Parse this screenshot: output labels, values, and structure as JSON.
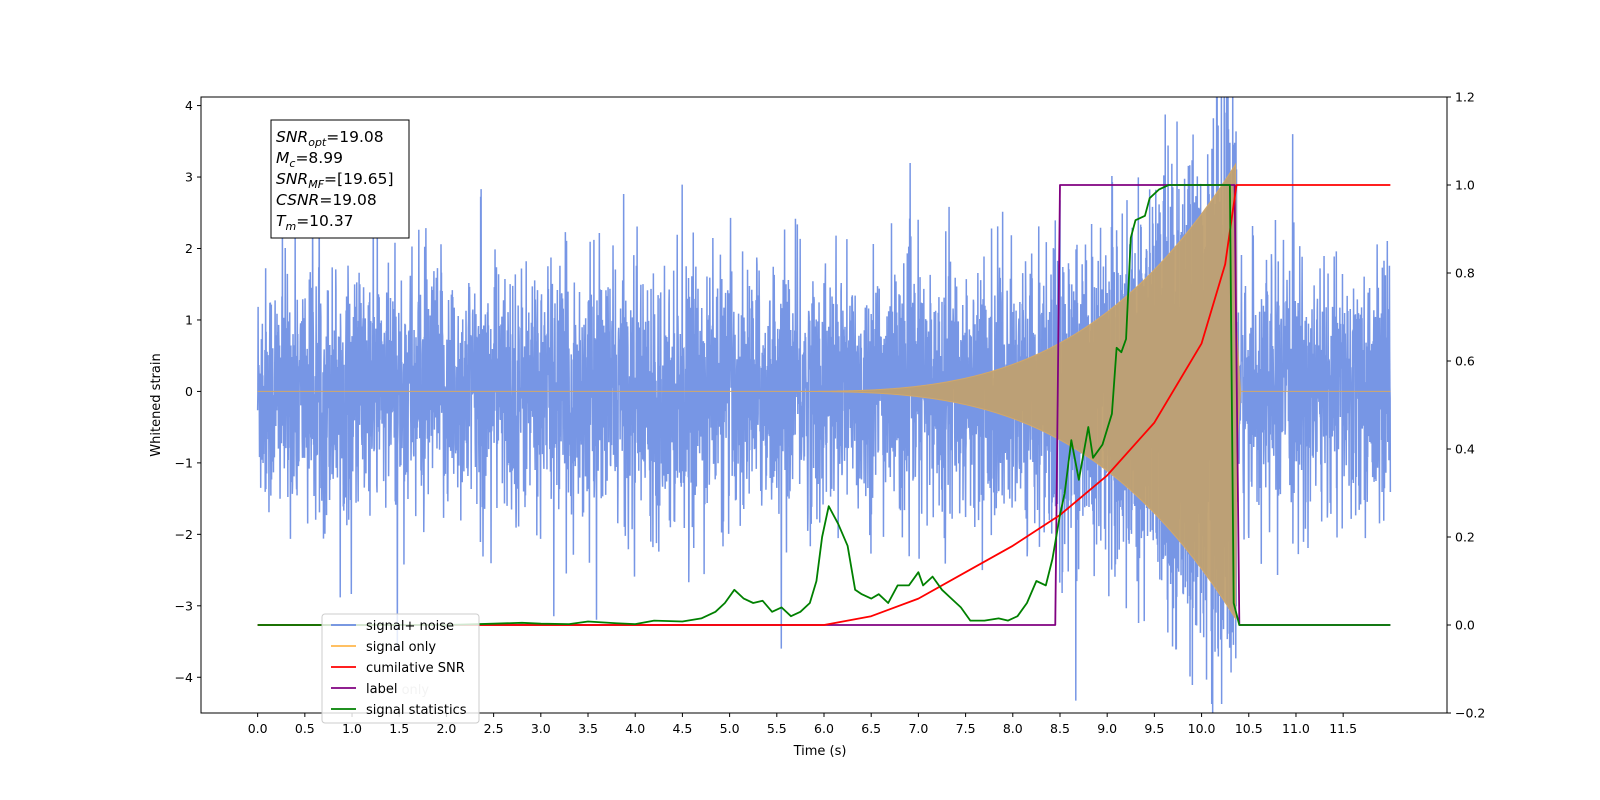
{
  "chart_data": {
    "type": "line",
    "xlabel": "Time (s)",
    "ylabel": "Whitened strain",
    "xlim": [
      -0.6,
      12.6
    ],
    "ylim_left": [
      -4.5,
      4.12
    ],
    "ylim_right": [
      -0.2,
      1.2
    ],
    "x_ticks": [
      "0.0",
      "0.5",
      "1.0",
      "1.5",
      "2.0",
      "2.5",
      "3.0",
      "3.5",
      "4.0",
      "4.5",
      "5.0",
      "5.5",
      "6.0",
      "6.5",
      "7.0",
      "7.5",
      "8.0",
      "8.5",
      "9.0",
      "9.5",
      "10.0",
      "10.5",
      "11.0",
      "11.5"
    ],
    "y_left_ticks": [
      "4",
      "3",
      "2",
      "1",
      "0",
      "−1",
      "−2",
      "−3",
      "−4"
    ],
    "y_right_ticks": [
      "1.2",
      "1.0",
      "0.8",
      "0.6",
      "0.4",
      "0.2",
      "0.0",
      "−0.2"
    ],
    "annotation": [
      {
        "sym": "SNR",
        "sub": "opt",
        "val": "=19.08"
      },
      {
        "sym": "M",
        "sub": "c",
        "val": "=8.99"
      },
      {
        "sym": "SNR",
        "sub": "MF",
        "val": "=[19.65]"
      },
      {
        "sym": "CSNR",
        "sub": "",
        "val": "=19.08"
      },
      {
        "sym": "T",
        "sub": "m",
        "val": "=10.37"
      }
    ],
    "legend_location": "lower-left",
    "legend_hidden_text": "label only",
    "series": [
      {
        "name": "signal+ noise",
        "color": "#6b8de3",
        "axis": "left",
        "description_noise_std": 0.85,
        "x_range": [
          0.0,
          12.0
        ]
      },
      {
        "name": "signal only",
        "color": "#ffb74d",
        "axis": "left",
        "chirp_start": 5.5,
        "merger_time": 10.37,
        "peak_amplitude": 3.2
      },
      {
        "name": "cumilative SNR",
        "color": "#ff0000",
        "axis": "right",
        "points": [
          [
            0.0,
            0.0
          ],
          [
            5.5,
            0.0
          ],
          [
            6.0,
            0.0
          ],
          [
            6.5,
            0.02
          ],
          [
            7.0,
            0.06
          ],
          [
            7.5,
            0.12
          ],
          [
            8.0,
            0.18
          ],
          [
            8.5,
            0.25
          ],
          [
            9.0,
            0.34
          ],
          [
            9.5,
            0.46
          ],
          [
            10.0,
            0.64
          ],
          [
            10.25,
            0.82
          ],
          [
            10.37,
            1.0
          ],
          [
            12.0,
            1.0
          ]
        ]
      },
      {
        "name": "label",
        "color": "#800080",
        "axis": "right",
        "points": [
          [
            0.0,
            0.0
          ],
          [
            8.45,
            0.0
          ],
          [
            8.5,
            1.0
          ],
          [
            10.35,
            1.0
          ],
          [
            10.4,
            0.0
          ],
          [
            12.0,
            0.0
          ]
        ]
      },
      {
        "name": "signal statistics",
        "color": "#008000",
        "axis": "right",
        "points": [
          [
            0.0,
            0.0
          ],
          [
            0.5,
            0.0
          ],
          [
            1.0,
            0.0
          ],
          [
            1.5,
            0.0
          ],
          [
            2.0,
            0.0
          ],
          [
            2.5,
            0.003
          ],
          [
            2.8,
            0.005
          ],
          [
            3.0,
            0.003
          ],
          [
            3.3,
            0.002
          ],
          [
            3.5,
            0.008
          ],
          [
            3.8,
            0.004
          ],
          [
            4.0,
            0.002
          ],
          [
            4.2,
            0.01
          ],
          [
            4.5,
            0.008
          ],
          [
            4.7,
            0.015
          ],
          [
            4.85,
            0.03
          ],
          [
            4.95,
            0.05
          ],
          [
            5.05,
            0.08
          ],
          [
            5.15,
            0.06
          ],
          [
            5.25,
            0.05
          ],
          [
            5.35,
            0.055
          ],
          [
            5.45,
            0.03
          ],
          [
            5.55,
            0.04
          ],
          [
            5.65,
            0.02
          ],
          [
            5.75,
            0.03
          ],
          [
            5.85,
            0.05
          ],
          [
            5.92,
            0.1
          ],
          [
            5.98,
            0.2
          ],
          [
            6.05,
            0.27
          ],
          [
            6.15,
            0.23
          ],
          [
            6.25,
            0.18
          ],
          [
            6.33,
            0.08
          ],
          [
            6.4,
            0.07
          ],
          [
            6.5,
            0.06
          ],
          [
            6.58,
            0.07
          ],
          [
            6.68,
            0.05
          ],
          [
            6.78,
            0.09
          ],
          [
            6.9,
            0.09
          ],
          [
            7.0,
            0.12
          ],
          [
            7.05,
            0.09
          ],
          [
            7.15,
            0.11
          ],
          [
            7.25,
            0.08
          ],
          [
            7.35,
            0.06
          ],
          [
            7.45,
            0.04
          ],
          [
            7.55,
            0.01
          ],
          [
            7.7,
            0.01
          ],
          [
            7.85,
            0.015
          ],
          [
            7.95,
            0.01
          ],
          [
            8.05,
            0.02
          ],
          [
            8.15,
            0.05
          ],
          [
            8.25,
            0.1
          ],
          [
            8.35,
            0.09
          ],
          [
            8.42,
            0.15
          ],
          [
            8.5,
            0.25
          ],
          [
            8.55,
            0.3
          ],
          [
            8.62,
            0.42
          ],
          [
            8.7,
            0.33
          ],
          [
            8.8,
            0.45
          ],
          [
            8.85,
            0.38
          ],
          [
            8.95,
            0.41
          ],
          [
            9.05,
            0.48
          ],
          [
            9.1,
            0.63
          ],
          [
            9.15,
            0.62
          ],
          [
            9.2,
            0.65
          ],
          [
            9.25,
            0.88
          ],
          [
            9.3,
            0.92
          ],
          [
            9.4,
            0.93
          ],
          [
            9.45,
            0.97
          ],
          [
            9.55,
            0.99
          ],
          [
            9.65,
            1.0
          ],
          [
            10.3,
            1.0
          ],
          [
            10.34,
            0.05
          ],
          [
            10.4,
            0.0
          ],
          [
            12.0,
            0.0
          ]
        ]
      }
    ]
  }
}
